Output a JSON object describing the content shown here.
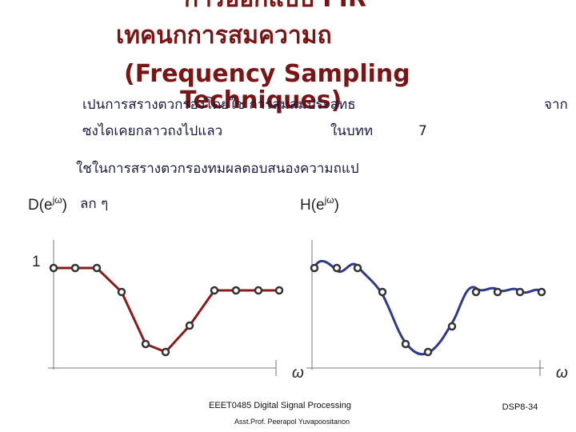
{
  "header": {
    "title_lines": [
      "การออกแบบ FIR",
      "เทคนกการสมความถ",
      "(Frequency Sampling",
      "Techniques)"
    ]
  },
  "body": {
    "lines": [
      "เปนการสรางตวกรองโดยใช การสมสมประสทธ",
      "จาก",
      "ซงไดเคยกลาวถงไปแลว",
      "ในบทท",
      "7",
      "ใชในการสรางตวกรองทมผลตอบสนองความถแป",
      "ลก ๆ"
    ]
  },
  "plots": {
    "left": {
      "label": "D(e",
      "sup": "jω",
      "close": ")",
      "y_label": "1",
      "x_label": "ω"
    },
    "right": {
      "label": "H(e",
      "sup": "jω",
      "close": ")",
      "x_label": "ω"
    }
  },
  "footer": {
    "course": "EEET0485 Digital Signal Processing",
    "author": "Asst.Prof. Peerapol Yuvapoositanon",
    "page": "DSP8-34"
  }
}
